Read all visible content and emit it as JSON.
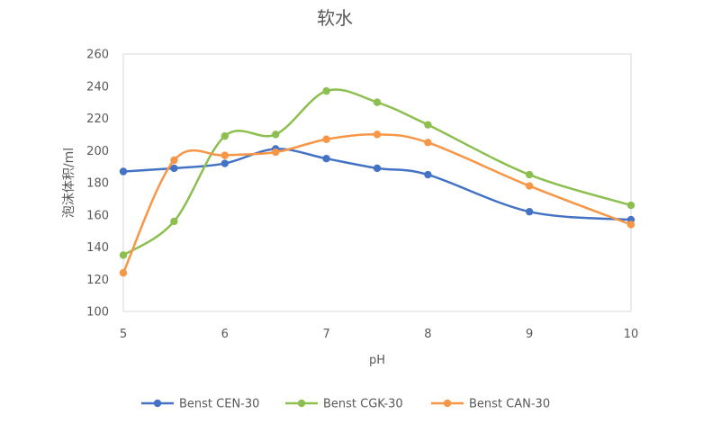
{
  "chart_data": {
    "type": "line",
    "title": "软水",
    "xlabel": "pH",
    "ylabel": "泡沫体积/ml",
    "xlim": [
      5,
      10
    ],
    "ylim": [
      100,
      260
    ],
    "x_ticks": [
      "5",
      "6",
      "7",
      "8",
      "9",
      "10"
    ],
    "y_ticks": [
      "100",
      "120",
      "140",
      "160",
      "180",
      "200",
      "220",
      "240",
      "260"
    ],
    "grid": false,
    "smooth": true,
    "legend_position": "bottom",
    "series": [
      {
        "name": "Benst CEN-30",
        "color": "#4472C4",
        "x": [
          5,
          5.5,
          6,
          6.5,
          7,
          7.5,
          8,
          9,
          10
        ],
        "y": [
          187,
          189,
          192,
          201,
          195,
          189,
          185,
          162,
          157
        ]
      },
      {
        "name": "Benst CGK-30",
        "color": "#8CBF4F",
        "x": [
          5,
          5.5,
          6,
          6.5,
          7,
          7.5,
          8,
          9,
          10
        ],
        "y": [
          135,
          156,
          209,
          210,
          237,
          230,
          216,
          185,
          166
        ]
      },
      {
        "name": "Benst CAN-30",
        "color": "#F79646",
        "x": [
          5,
          5.5,
          6,
          6.5,
          7,
          7.5,
          8,
          9,
          10
        ],
        "y": [
          124,
          194,
          197,
          199,
          207,
          210,
          205,
          178,
          154
        ]
      }
    ]
  }
}
